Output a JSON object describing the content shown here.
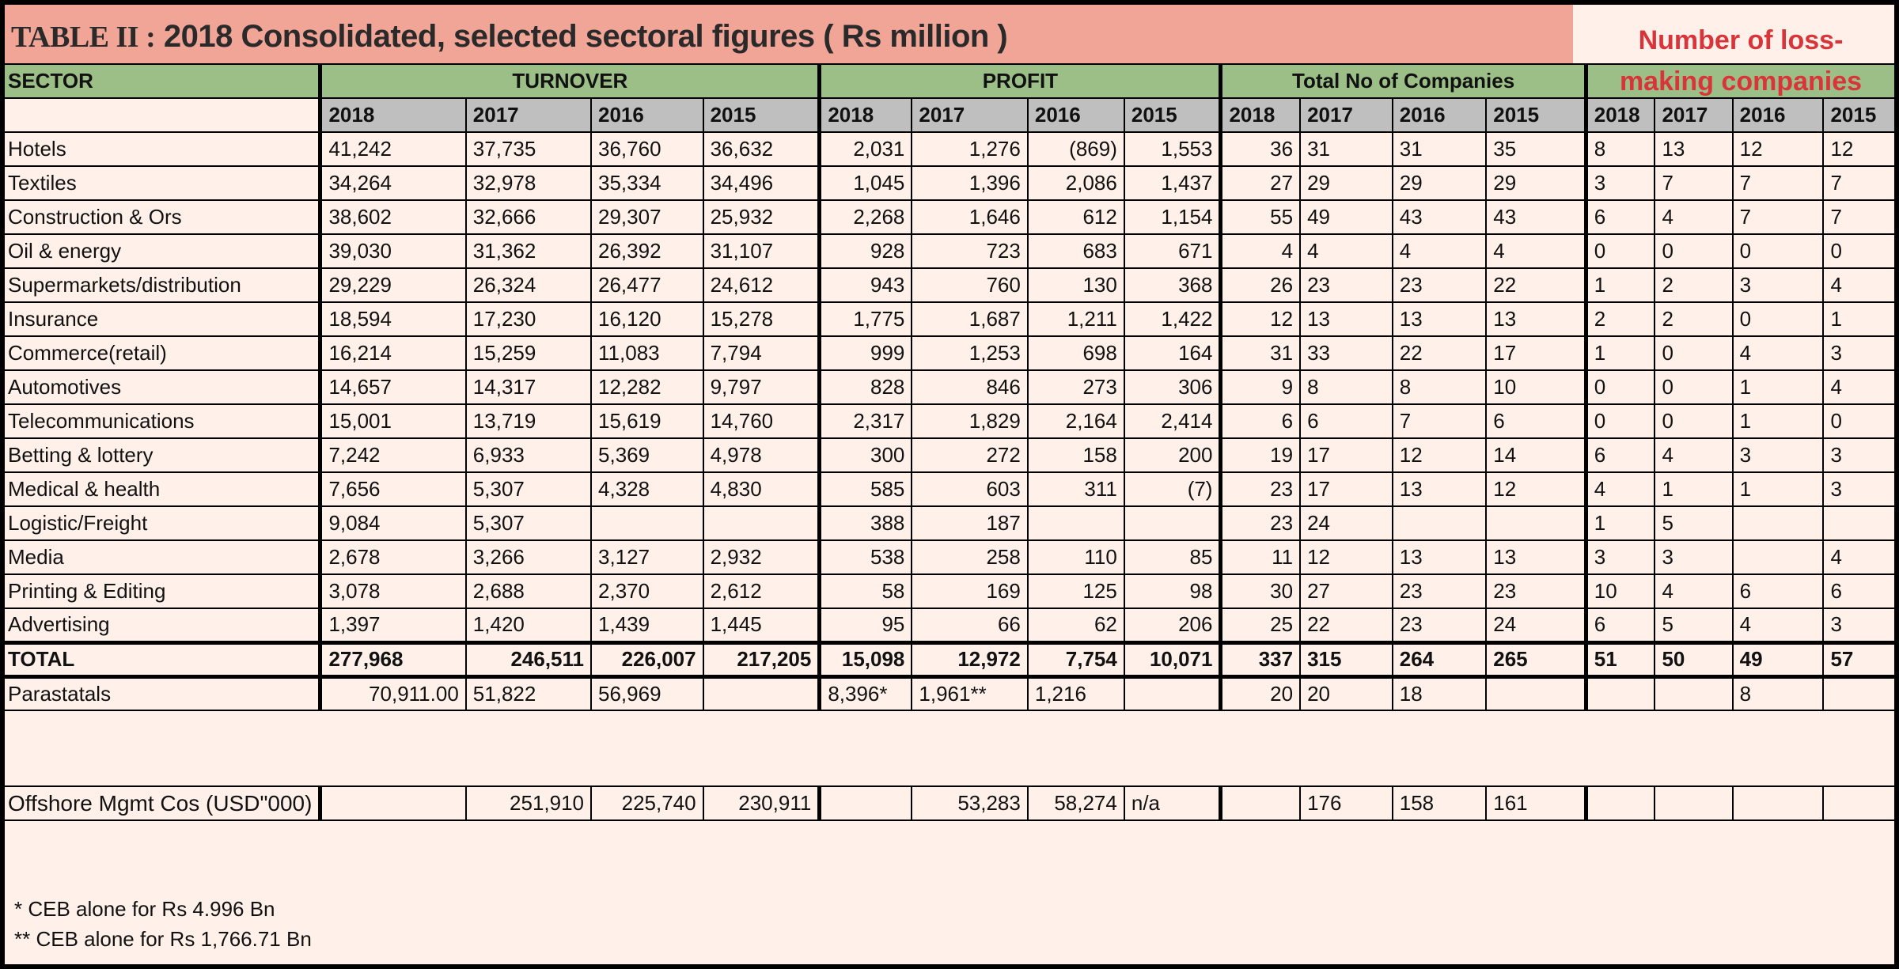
{
  "title": "2018 Consolidated, selected sectoral figures ( Rs million )",
  "title_prefix": "TABLE II :",
  "loss_heading": [
    "Number of loss-",
    "making companies"
  ],
  "groups": {
    "sector": "SECTOR",
    "turnover": "TURNOVER",
    "profit": "PROFIT",
    "companies": "Total No of Companies"
  },
  "years": [
    "2018",
    "2017",
    "2016",
    "2015"
  ],
  "rows": [
    {
      "sector": "Hotels",
      "turnover": [
        "41,242",
        "37,735",
        "36,760",
        "36,632"
      ],
      "profit": [
        "2,031",
        "1,276",
        "(869)",
        "1,553"
      ],
      "companies": [
        "36",
        "31",
        "31",
        "35"
      ],
      "loss": [
        "8",
        "13",
        "12",
        "12"
      ]
    },
    {
      "sector": "Textiles",
      "turnover": [
        "34,264",
        "32,978",
        "35,334",
        "34,496"
      ],
      "profit": [
        "1,045",
        "1,396",
        "2,086",
        "1,437"
      ],
      "companies": [
        "27",
        "29",
        "29",
        "29"
      ],
      "loss": [
        "3",
        "7",
        "7",
        "7"
      ]
    },
    {
      "sector": "Construction & Ors",
      "turnover": [
        "38,602",
        "32,666",
        "29,307",
        "25,932"
      ],
      "profit": [
        "2,268",
        "1,646",
        "612",
        "1,154"
      ],
      "companies": [
        "55",
        "49",
        "43",
        "43"
      ],
      "loss": [
        "6",
        "4",
        "7",
        "7"
      ]
    },
    {
      "sector": "Oil & energy",
      "turnover": [
        "39,030",
        "31,362",
        "26,392",
        "31,107"
      ],
      "profit": [
        "928",
        "723",
        "683",
        "671"
      ],
      "companies": [
        "4",
        "4",
        "4",
        "4"
      ],
      "loss": [
        "0",
        "0",
        "0",
        "0"
      ]
    },
    {
      "sector": "Supermarkets/distribution",
      "turnover": [
        "29,229",
        "26,324",
        "26,477",
        "24,612"
      ],
      "profit": [
        "943",
        "760",
        "130",
        "368"
      ],
      "companies": [
        "26",
        "23",
        "23",
        "22"
      ],
      "loss": [
        "1",
        "2",
        "3",
        "4"
      ]
    },
    {
      "sector": "Insurance",
      "turnover": [
        "18,594",
        "17,230",
        "16,120",
        "15,278"
      ],
      "profit": [
        "1,775",
        "1,687",
        "1,211",
        "1,422"
      ],
      "companies": [
        "12",
        "13",
        "13",
        "13"
      ],
      "loss": [
        "2",
        "2",
        "0",
        "1"
      ]
    },
    {
      "sector": "Commerce(retail)",
      "turnover": [
        "16,214",
        "15,259",
        "11,083",
        "7,794"
      ],
      "profit": [
        "999",
        "1,253",
        "698",
        "164"
      ],
      "companies": [
        "31",
        "33",
        "22",
        "17"
      ],
      "loss": [
        "1",
        "0",
        "4",
        "3"
      ]
    },
    {
      "sector": "Automotives",
      "turnover": [
        "14,657",
        "14,317",
        "12,282",
        "9,797"
      ],
      "profit": [
        "828",
        "846",
        "273",
        "306"
      ],
      "companies": [
        "9",
        "8",
        "8",
        "10"
      ],
      "loss": [
        "0",
        "0",
        "1",
        "4"
      ]
    },
    {
      "sector": "Telecommunications",
      "turnover": [
        "15,001",
        "13,719",
        "15,619",
        "14,760"
      ],
      "profit": [
        "2,317",
        "1,829",
        "2,164",
        "2,414"
      ],
      "companies": [
        "6",
        "6",
        "7",
        "6"
      ],
      "loss": [
        "0",
        "0",
        "1",
        "0"
      ]
    },
    {
      "sector": "Betting & lottery",
      "turnover": [
        "7,242",
        "6,933",
        "5,369",
        "4,978"
      ],
      "profit": [
        "300",
        "272",
        "158",
        "200"
      ],
      "companies": [
        "19",
        "17",
        "12",
        "14"
      ],
      "loss": [
        "6",
        "4",
        "3",
        "3"
      ]
    },
    {
      "sector": "Medical & health",
      "turnover": [
        "7,656",
        "5,307",
        "4,328",
        "4,830"
      ],
      "profit": [
        "585",
        "603",
        "311",
        "(7)"
      ],
      "companies": [
        "23",
        "17",
        "13",
        "12"
      ],
      "loss": [
        "4",
        "1",
        "1",
        "3"
      ]
    },
    {
      "sector": "Logistic/Freight",
      "turnover": [
        "9,084",
        "5,307",
        "",
        ""
      ],
      "profit": [
        "388",
        "187",
        "",
        ""
      ],
      "companies": [
        "23",
        "24",
        "",
        ""
      ],
      "loss": [
        "1",
        "5",
        "",
        ""
      ]
    },
    {
      "sector": "Media",
      "turnover": [
        "2,678",
        "3,266",
        "3,127",
        "2,932"
      ],
      "profit": [
        "538",
        "258",
        "110",
        "85"
      ],
      "companies": [
        "11",
        "12",
        "13",
        "13"
      ],
      "loss": [
        "3",
        "3",
        "",
        "4"
      ]
    },
    {
      "sector": "Printing & Editing",
      "turnover": [
        "3,078",
        "2,688",
        "2,370",
        "2,612"
      ],
      "profit": [
        "58",
        "169",
        "125",
        "98"
      ],
      "companies": [
        "30",
        "27",
        "23",
        "23"
      ],
      "loss": [
        "10",
        "4",
        "6",
        "6"
      ]
    },
    {
      "sector": "Advertising",
      "turnover": [
        "1,397",
        "1,420",
        "1,439",
        "1,445"
      ],
      "profit": [
        "95",
        "66",
        "62",
        "206"
      ],
      "companies": [
        "25",
        "22",
        "23",
        "24"
      ],
      "loss": [
        "6",
        "5",
        "4",
        "3"
      ]
    }
  ],
  "total": {
    "sector": "TOTAL",
    "turnover": [
      "277,968",
      "246,511",
      "226,007",
      "217,205"
    ],
    "profit": [
      "15,098",
      "12,972",
      "7,754",
      "10,071"
    ],
    "companies": [
      "337",
      "315",
      "264",
      "265"
    ],
    "loss": [
      "51",
      "50",
      "49",
      "57"
    ]
  },
  "parastatals": {
    "sector": "Parastatals",
    "turnover": [
      "70,911.00",
      "51,822",
      "56,969",
      ""
    ],
    "profit": [
      "8,396*",
      "1,961**",
      "1,216",
      ""
    ],
    "companies": [
      "20",
      "20",
      "18",
      ""
    ],
    "loss": [
      "",
      "",
      "8",
      ""
    ]
  },
  "offshore": {
    "sector": "Offshore Mgmt Cos (USD\"000)",
    "turnover": [
      "",
      "251,910",
      "225,740",
      "230,911"
    ],
    "profit": [
      "",
      "53,283",
      "58,274",
      "n/a"
    ],
    "companies": [
      "",
      "176",
      "158",
      "161"
    ],
    "loss": [
      "",
      "",
      "",
      ""
    ]
  },
  "footnotes": [
    "* CEB alone for Rs 4.996 Bn",
    "** CEB alone  for Rs 1,766.71 Bn"
  ]
}
